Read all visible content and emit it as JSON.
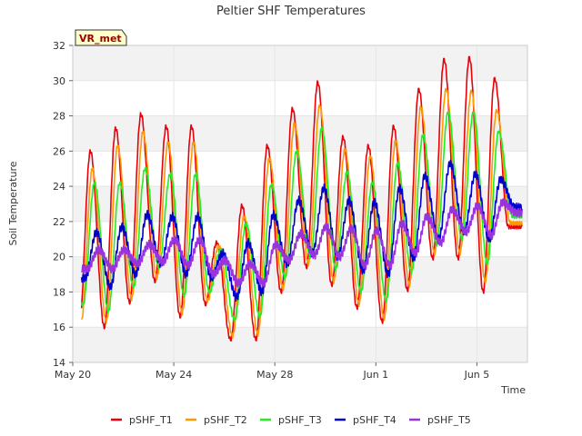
{
  "chart_data": {
    "type": "line",
    "title": "Peltier SHF Temperatures",
    "xlabel": "Time",
    "ylabel": "Soil Temperature",
    "site_label": "VR_met",
    "xlim": [
      "2024-05-20",
      "2024-06-07"
    ],
    "ylim": [
      14,
      32
    ],
    "x_ticks": [
      {
        "date": "2024-05-20",
        "label": "May 20"
      },
      {
        "date": "2024-05-24",
        "label": "May 24"
      },
      {
        "date": "2024-05-28",
        "label": "May 28"
      },
      {
        "date": "2024-06-01",
        "label": "Jun 1"
      },
      {
        "date": "2024-06-05",
        "label": "Jun 5"
      }
    ],
    "y_ticks": [
      14,
      16,
      18,
      20,
      22,
      24,
      26,
      28,
      30,
      32
    ],
    "legend_position": "bottom",
    "daily_dates": [
      "2024-05-20",
      "2024-05-21",
      "2024-05-22",
      "2024-05-23",
      "2024-05-24",
      "2024-05-25",
      "2024-05-26",
      "2024-05-27",
      "2024-05-28",
      "2024-05-29",
      "2024-05-30",
      "2024-05-31",
      "2024-06-01",
      "2024-06-02",
      "2024-06-03",
      "2024-06-04",
      "2024-06-05",
      "2024-06-06"
    ],
    "series": [
      {
        "name": "pSHF_T1",
        "color": "#e8000b",
        "daily_min": [
          15.9,
          16.0,
          17.4,
          18.6,
          16.6,
          17.3,
          15.3,
          15.3,
          18.0,
          19.4,
          18.4,
          17.1,
          16.3,
          18.1,
          19.9,
          19.9,
          18.0,
          21.7
        ],
        "daily_max": [
          26.0,
          27.3,
          28.1,
          27.4,
          27.4,
          20.8,
          22.9,
          26.3,
          28.4,
          29.9,
          26.8,
          26.3,
          27.4,
          29.5,
          31.2,
          31.3,
          30.1,
          21.7
        ]
      },
      {
        "name": "pSHF_T2",
        "color": "#ff9900",
        "daily_min": [
          16.3,
          16.3,
          17.6,
          18.8,
          16.8,
          17.5,
          15.5,
          15.6,
          18.2,
          19.6,
          18.6,
          17.3,
          16.5,
          18.4,
          20.2,
          20.2,
          18.6,
          21.9
        ],
        "daily_max": [
          25.0,
          26.3,
          27.1,
          26.5,
          26.5,
          20.6,
          22.3,
          25.6,
          27.6,
          28.6,
          26.1,
          25.7,
          26.6,
          28.5,
          29.5,
          29.4,
          28.3,
          21.9
        ]
      },
      {
        "name": "pSHF_T3",
        "color": "#22ee22",
        "daily_min": [
          17.3,
          16.9,
          18.3,
          19.4,
          17.8,
          18.0,
          16.4,
          16.6,
          18.8,
          20.0,
          19.3,
          18.0,
          17.5,
          19.1,
          20.7,
          21.0,
          19.6,
          22.3
        ],
        "daily_max": [
          24.2,
          24.2,
          25.0,
          24.7,
          24.7,
          20.4,
          21.9,
          24.1,
          26.0,
          27.3,
          24.8,
          24.2,
          25.3,
          26.9,
          28.2,
          28.2,
          27.1,
          22.3
        ]
      },
      {
        "name": "pSHF_T4",
        "color": "#0000cc",
        "daily_min": [
          18.8,
          18.3,
          19.0,
          19.6,
          19.0,
          18.8,
          17.7,
          18.0,
          19.6,
          20.2,
          20.0,
          19.2,
          19.0,
          19.9,
          21.0,
          21.4,
          21.0,
          22.8
        ],
        "daily_max": [
          21.4,
          21.7,
          22.4,
          22.3,
          22.3,
          20.2,
          20.8,
          22.4,
          23.2,
          23.9,
          23.2,
          23.1,
          23.9,
          24.6,
          25.3,
          24.7,
          24.4,
          22.8
        ]
      },
      {
        "name": "pSHF_T5",
        "color": "#9933dd",
        "daily_min": [
          19.3,
          19.3,
          19.6,
          19.7,
          19.5,
          19.0,
          18.5,
          18.5,
          19.8,
          20.1,
          20.0,
          19.5,
          19.5,
          20.2,
          20.8,
          21.4,
          21.2,
          22.5
        ],
        "daily_max": [
          20.4,
          20.4,
          20.7,
          21.0,
          21.0,
          19.8,
          19.6,
          20.7,
          21.3,
          21.7,
          21.6,
          21.5,
          21.9,
          22.3,
          22.7,
          22.9,
          23.1,
          22.5
        ]
      }
    ]
  }
}
